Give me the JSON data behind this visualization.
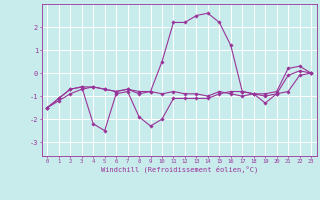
{
  "xlabel": "Windchill (Refroidissement éolien,°C)",
  "xlim": [
    -0.5,
    23.5
  ],
  "ylim": [
    -3.6,
    3.0
  ],
  "yticks": [
    -3,
    -2,
    -1,
    0,
    1,
    2
  ],
  "xticks": [
    0,
    1,
    2,
    3,
    4,
    5,
    6,
    7,
    8,
    9,
    10,
    11,
    12,
    13,
    14,
    15,
    16,
    17,
    18,
    19,
    20,
    21,
    22,
    23
  ],
  "bg_color": "#c8ecec",
  "line_color": "#993399",
  "grid_color": "#ffffff",
  "lines": [
    {
      "x": [
        0,
        1,
        2,
        3,
        4,
        5,
        6,
        7,
        8,
        9,
        10,
        11,
        12,
        13,
        14,
        15,
        16,
        17,
        18,
        19,
        20,
        21,
        22,
        23
      ],
      "y": [
        -1.5,
        -1.2,
        -0.9,
        -0.7,
        -0.6,
        -0.7,
        -0.8,
        -0.7,
        -0.8,
        -0.8,
        -0.9,
        -0.8,
        -0.9,
        -0.9,
        -1.0,
        -0.8,
        -0.9,
        -1.0,
        -0.9,
        -1.3,
        -0.9,
        -0.8,
        -0.1,
        0.0
      ]
    },
    {
      "x": [
        0,
        1,
        2,
        3,
        4,
        5,
        6,
        7,
        8,
        9,
        10,
        11,
        12,
        13,
        14,
        15,
        16,
        17,
        18,
        19,
        20,
        21,
        22,
        23
      ],
      "y": [
        -1.5,
        -1.1,
        -0.7,
        -0.6,
        -2.2,
        -2.5,
        -0.9,
        -0.8,
        -1.9,
        -2.3,
        -2.0,
        -1.1,
        -1.1,
        -1.1,
        -1.1,
        -0.9,
        -0.8,
        -0.8,
        -0.9,
        -1.0,
        -0.9,
        -0.1,
        0.1,
        0.0
      ]
    },
    {
      "x": [
        0,
        1,
        2,
        3,
        4,
        5,
        6,
        7,
        8,
        9,
        10,
        11,
        12,
        13,
        14,
        15,
        16,
        17,
        18,
        19,
        20,
        21,
        22,
        23
      ],
      "y": [
        -1.5,
        -1.1,
        -0.7,
        -0.6,
        -0.6,
        -0.7,
        -0.8,
        -0.7,
        -0.9,
        -0.8,
        0.5,
        2.2,
        2.2,
        2.5,
        2.6,
        2.2,
        1.2,
        -0.8,
        -0.9,
        -0.9,
        -0.8,
        0.2,
        0.3,
        0.0
      ]
    }
  ]
}
